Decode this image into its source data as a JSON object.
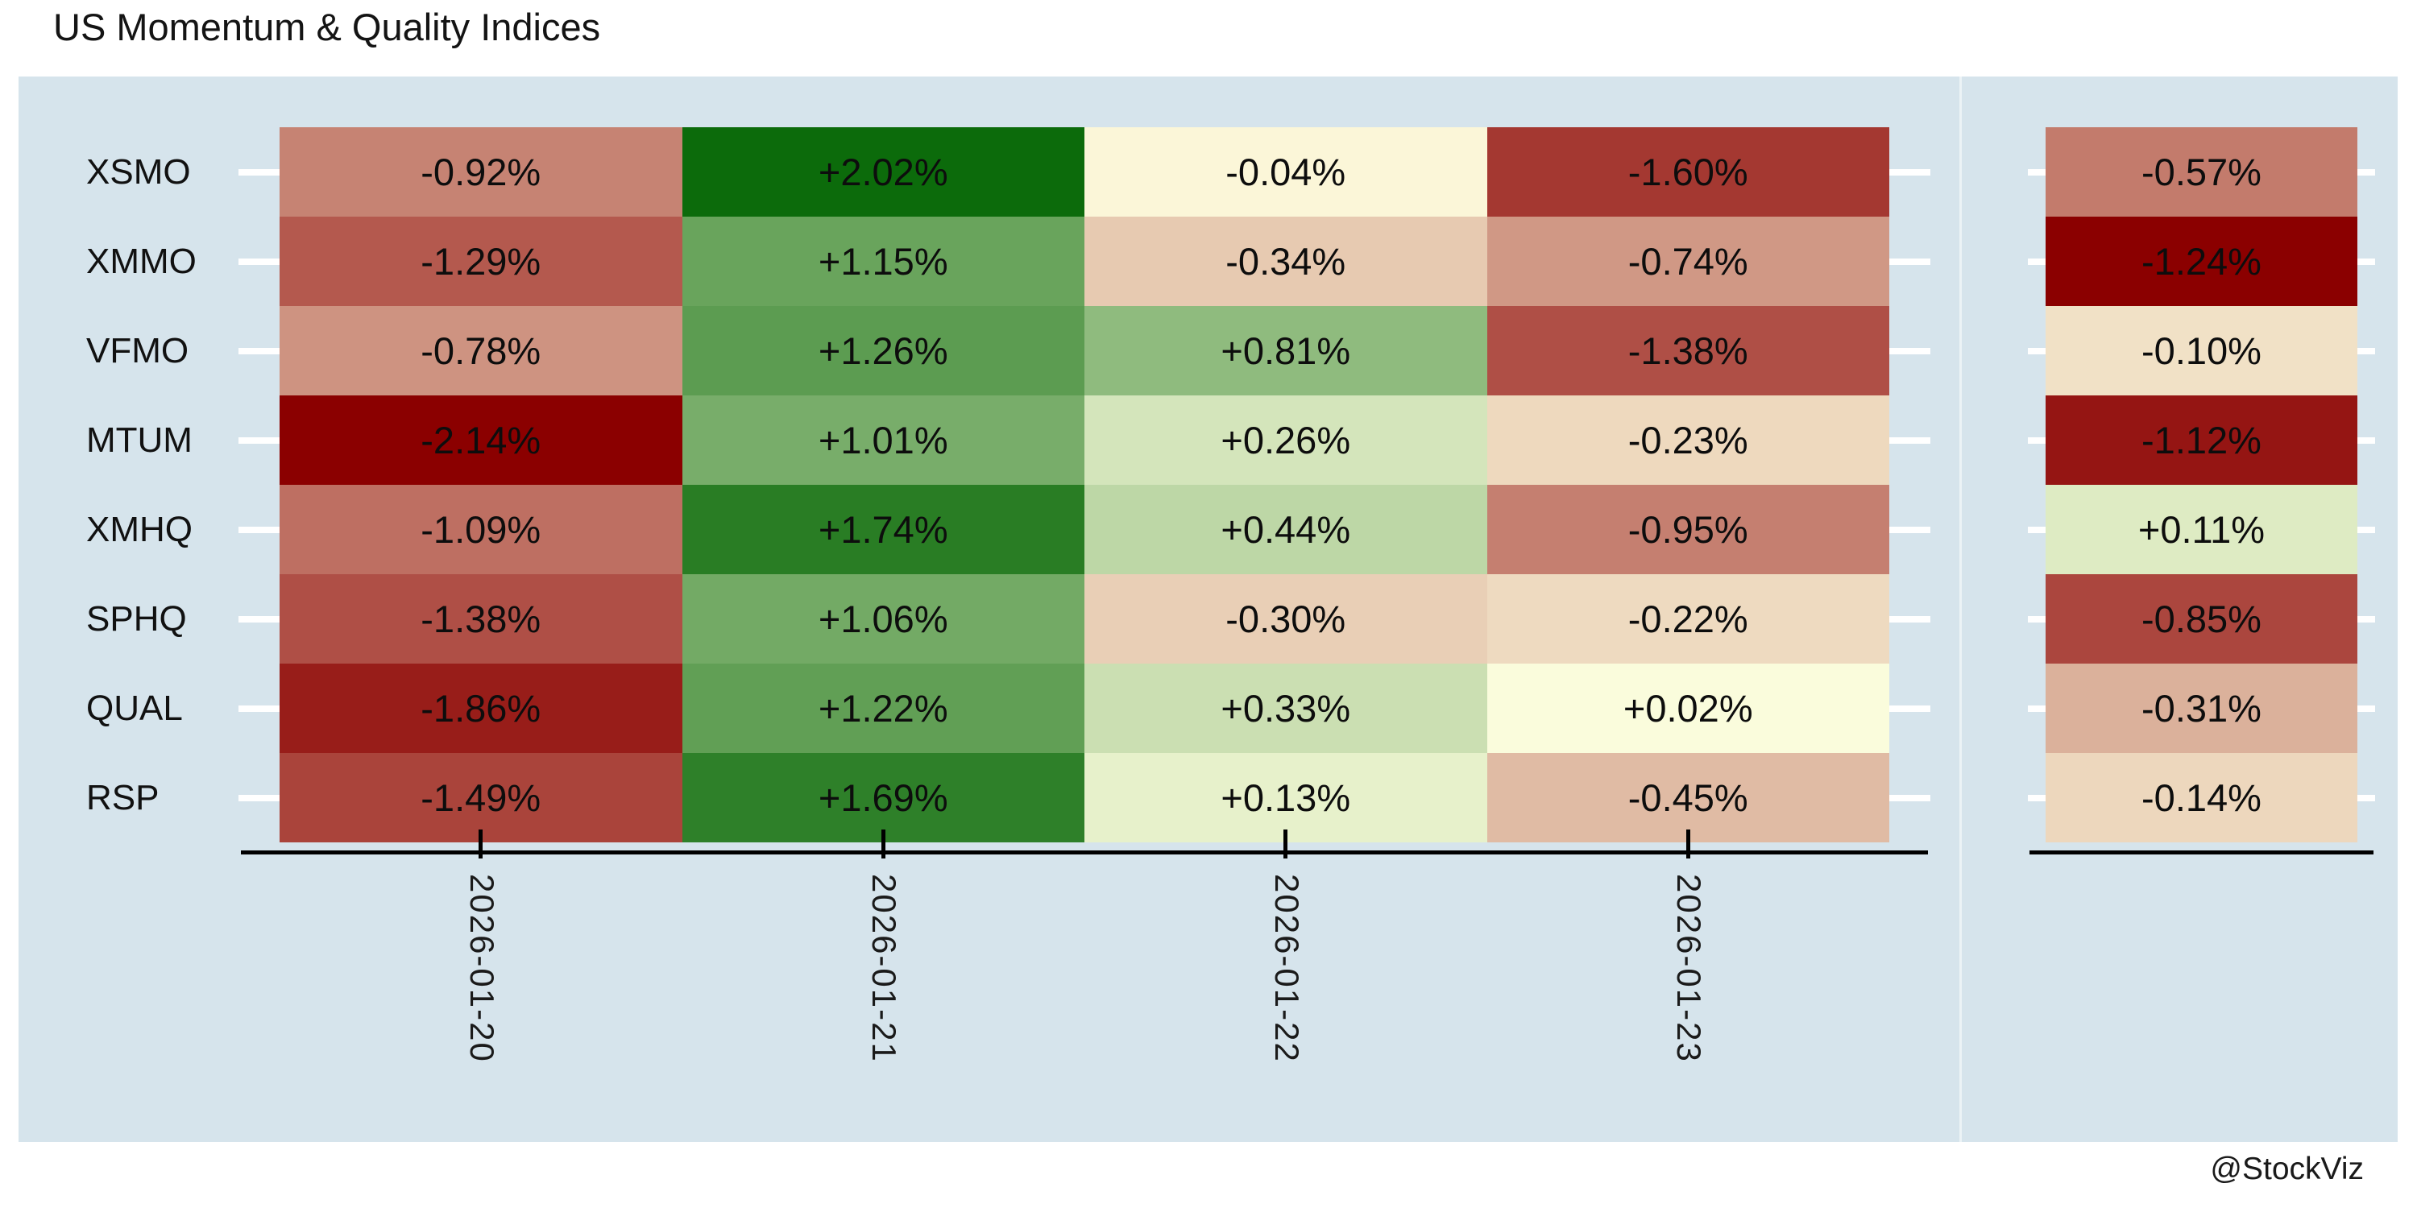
{
  "title": "US Momentum & Quality Indices",
  "watermark": "@StockViz",
  "chart_data": {
    "type": "heatmap",
    "title": "US Momentum & Quality Indices",
    "rows": [
      "XSMO",
      "XMMO",
      "VFMO",
      "MTUM",
      "XMHQ",
      "SPHQ",
      "QUAL",
      "RSP"
    ],
    "columns": [
      "2026-01-20",
      "2026-01-21",
      "2026-01-22",
      "2026-01-23"
    ],
    "values_pct": [
      [
        -0.92,
        2.02,
        -0.04,
        -1.6
      ],
      [
        -1.29,
        1.15,
        -0.34,
        -0.74
      ],
      [
        -0.78,
        1.26,
        0.81,
        -1.38
      ],
      [
        -2.14,
        1.01,
        0.26,
        -0.23
      ],
      [
        -1.09,
        1.74,
        0.44,
        -0.95
      ],
      [
        -1.38,
        1.06,
        -0.3,
        -0.22
      ],
      [
        -1.86,
        1.22,
        0.33,
        0.02
      ],
      [
        -1.49,
        1.69,
        0.13,
        -0.45
      ]
    ],
    "summary_column_values_pct": [
      -0.57,
      -1.24,
      -0.1,
      -1.12,
      0.11,
      -0.85,
      -0.31,
      -0.14
    ],
    "main_vmax_abs": 2.14,
    "summary_vmax_abs": 1.24,
    "value_label_format": "+0.00% / -0.00%",
    "colormap": {
      "min_color": "#8b0000",
      "mid_color": "#ffffe0",
      "max_color": "#006400",
      "shape_exponent": 0.85
    },
    "panel_background": "#d6e4ec",
    "tick_color_y": "#ffffff",
    "tick_color_x": "#000000",
    "legend": "none",
    "grid": "off"
  }
}
